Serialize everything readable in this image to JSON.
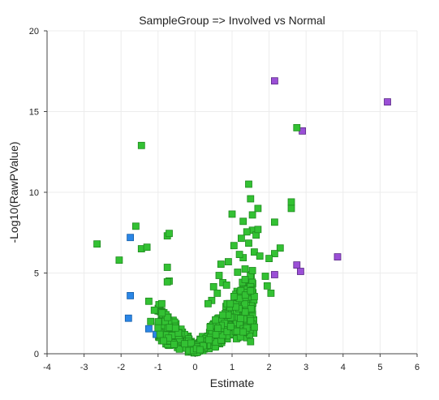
{
  "chart_data": {
    "type": "scatter",
    "title": "SampleGroup => Involved vs Normal",
    "xlabel": "Estimate",
    "ylabel": "-Log10(RawPValue)",
    "xlim": [
      -4,
      6
    ],
    "ylim": [
      0,
      20
    ],
    "xticks": [
      "-4",
      "-3",
      "-2",
      "-1",
      "0",
      "1",
      "2",
      "3",
      "4",
      "5",
      "6"
    ],
    "yticks": [
      "0",
      "5",
      "10",
      "15",
      "20"
    ],
    "grid": true,
    "legend": "none",
    "colors": {
      "green": "#33c133",
      "green_edge": "#1e8a1e",
      "purple": "#9b4fd6",
      "purple_edge": "#5a2a86",
      "blue": "#2a86e6",
      "blue_edge": "#155ea8",
      "axis": "#444444",
      "grid": "#ececec"
    },
    "series": [
      {
        "color": "purple",
        "points": [
          [
            2.15,
            16.9
          ],
          [
            5.2,
            15.6
          ],
          [
            2.9,
            13.8
          ],
          [
            3.85,
            6.0
          ],
          [
            2.75,
            5.5
          ],
          [
            2.85,
            5.1
          ],
          [
            2.15,
            4.9
          ]
        ]
      },
      {
        "color": "blue",
        "points": [
          [
            -1.75,
            7.2
          ],
          [
            -1.75,
            3.6
          ],
          [
            -1.8,
            2.2
          ],
          [
            -1.25,
            1.55
          ],
          [
            -1.05,
            1.2
          ]
        ]
      },
      {
        "color": "green",
        "points": [
          [
            -1.45,
            12.9
          ],
          [
            -2.65,
            6.8
          ],
          [
            -2.05,
            5.8
          ],
          [
            -1.6,
            7.9
          ],
          [
            -1.45,
            6.5
          ],
          [
            -1.3,
            6.6
          ],
          [
            -0.75,
            7.3
          ],
          [
            -0.7,
            7.45
          ],
          [
            -0.75,
            5.35
          ],
          [
            -0.7,
            4.5
          ],
          [
            -0.75,
            4.45
          ],
          [
            -1.25,
            3.25
          ],
          [
            -1.1,
            2.7
          ],
          [
            -0.9,
            3.1
          ],
          [
            -1.2,
            2.0
          ],
          [
            -1.0,
            1.6
          ],
          [
            -0.95,
            1.2
          ],
          [
            -0.85,
            0.8
          ],
          [
            2.75,
            14.0
          ],
          [
            1.45,
            10.5
          ],
          [
            2.6,
            9.4
          ],
          [
            2.6,
            9.0
          ],
          [
            2.15,
            8.15
          ],
          [
            1.0,
            8.65
          ],
          [
            1.55,
            7.65
          ],
          [
            1.65,
            7.35
          ],
          [
            1.7,
            7.7
          ],
          [
            1.7,
            9.0
          ],
          [
            1.5,
            9.6
          ],
          [
            1.55,
            8.6
          ],
          [
            1.3,
            8.2
          ],
          [
            2.3,
            6.55
          ],
          [
            2.15,
            6.2
          ],
          [
            2.0,
            5.9
          ],
          [
            1.9,
            4.8
          ],
          [
            1.95,
            4.2
          ],
          [
            2.05,
            3.75
          ],
          [
            1.45,
            6.85
          ],
          [
            1.6,
            6.3
          ],
          [
            1.75,
            6.05
          ],
          [
            1.3,
            5.95
          ],
          [
            1.2,
            6.15
          ],
          [
            1.05,
            6.7
          ],
          [
            1.25,
            7.15
          ],
          [
            1.4,
            7.55
          ],
          [
            0.9,
            5.7
          ],
          [
            0.7,
            5.55
          ],
          [
            0.65,
            4.85
          ],
          [
            0.75,
            4.4
          ],
          [
            0.85,
            4.25
          ],
          [
            0.5,
            4.15
          ],
          [
            0.45,
            3.3
          ],
          [
            0.35,
            3.1
          ],
          [
            0.6,
            3.75
          ],
          [
            1.15,
            5.05
          ],
          [
            1.35,
            5.25
          ],
          [
            1.55,
            5.15
          ],
          [
            1.6,
            3.55
          ],
          [
            1.5,
            3.9
          ],
          [
            1.35,
            4.6
          ],
          [
            1.05,
            3.55
          ],
          [
            1.1,
            2.9
          ],
          [
            0.95,
            3.1
          ],
          [
            0.75,
            2.4
          ],
          [
            0.55,
            2.1
          ],
          [
            1.4,
            1.6
          ],
          [
            1.3,
            1.35
          ],
          [
            1.5,
            2.05
          ],
          [
            1.6,
            1.65
          ],
          [
            1.5,
            0.75
          ]
        ],
        "cluster": "dense"
      }
    ]
  }
}
